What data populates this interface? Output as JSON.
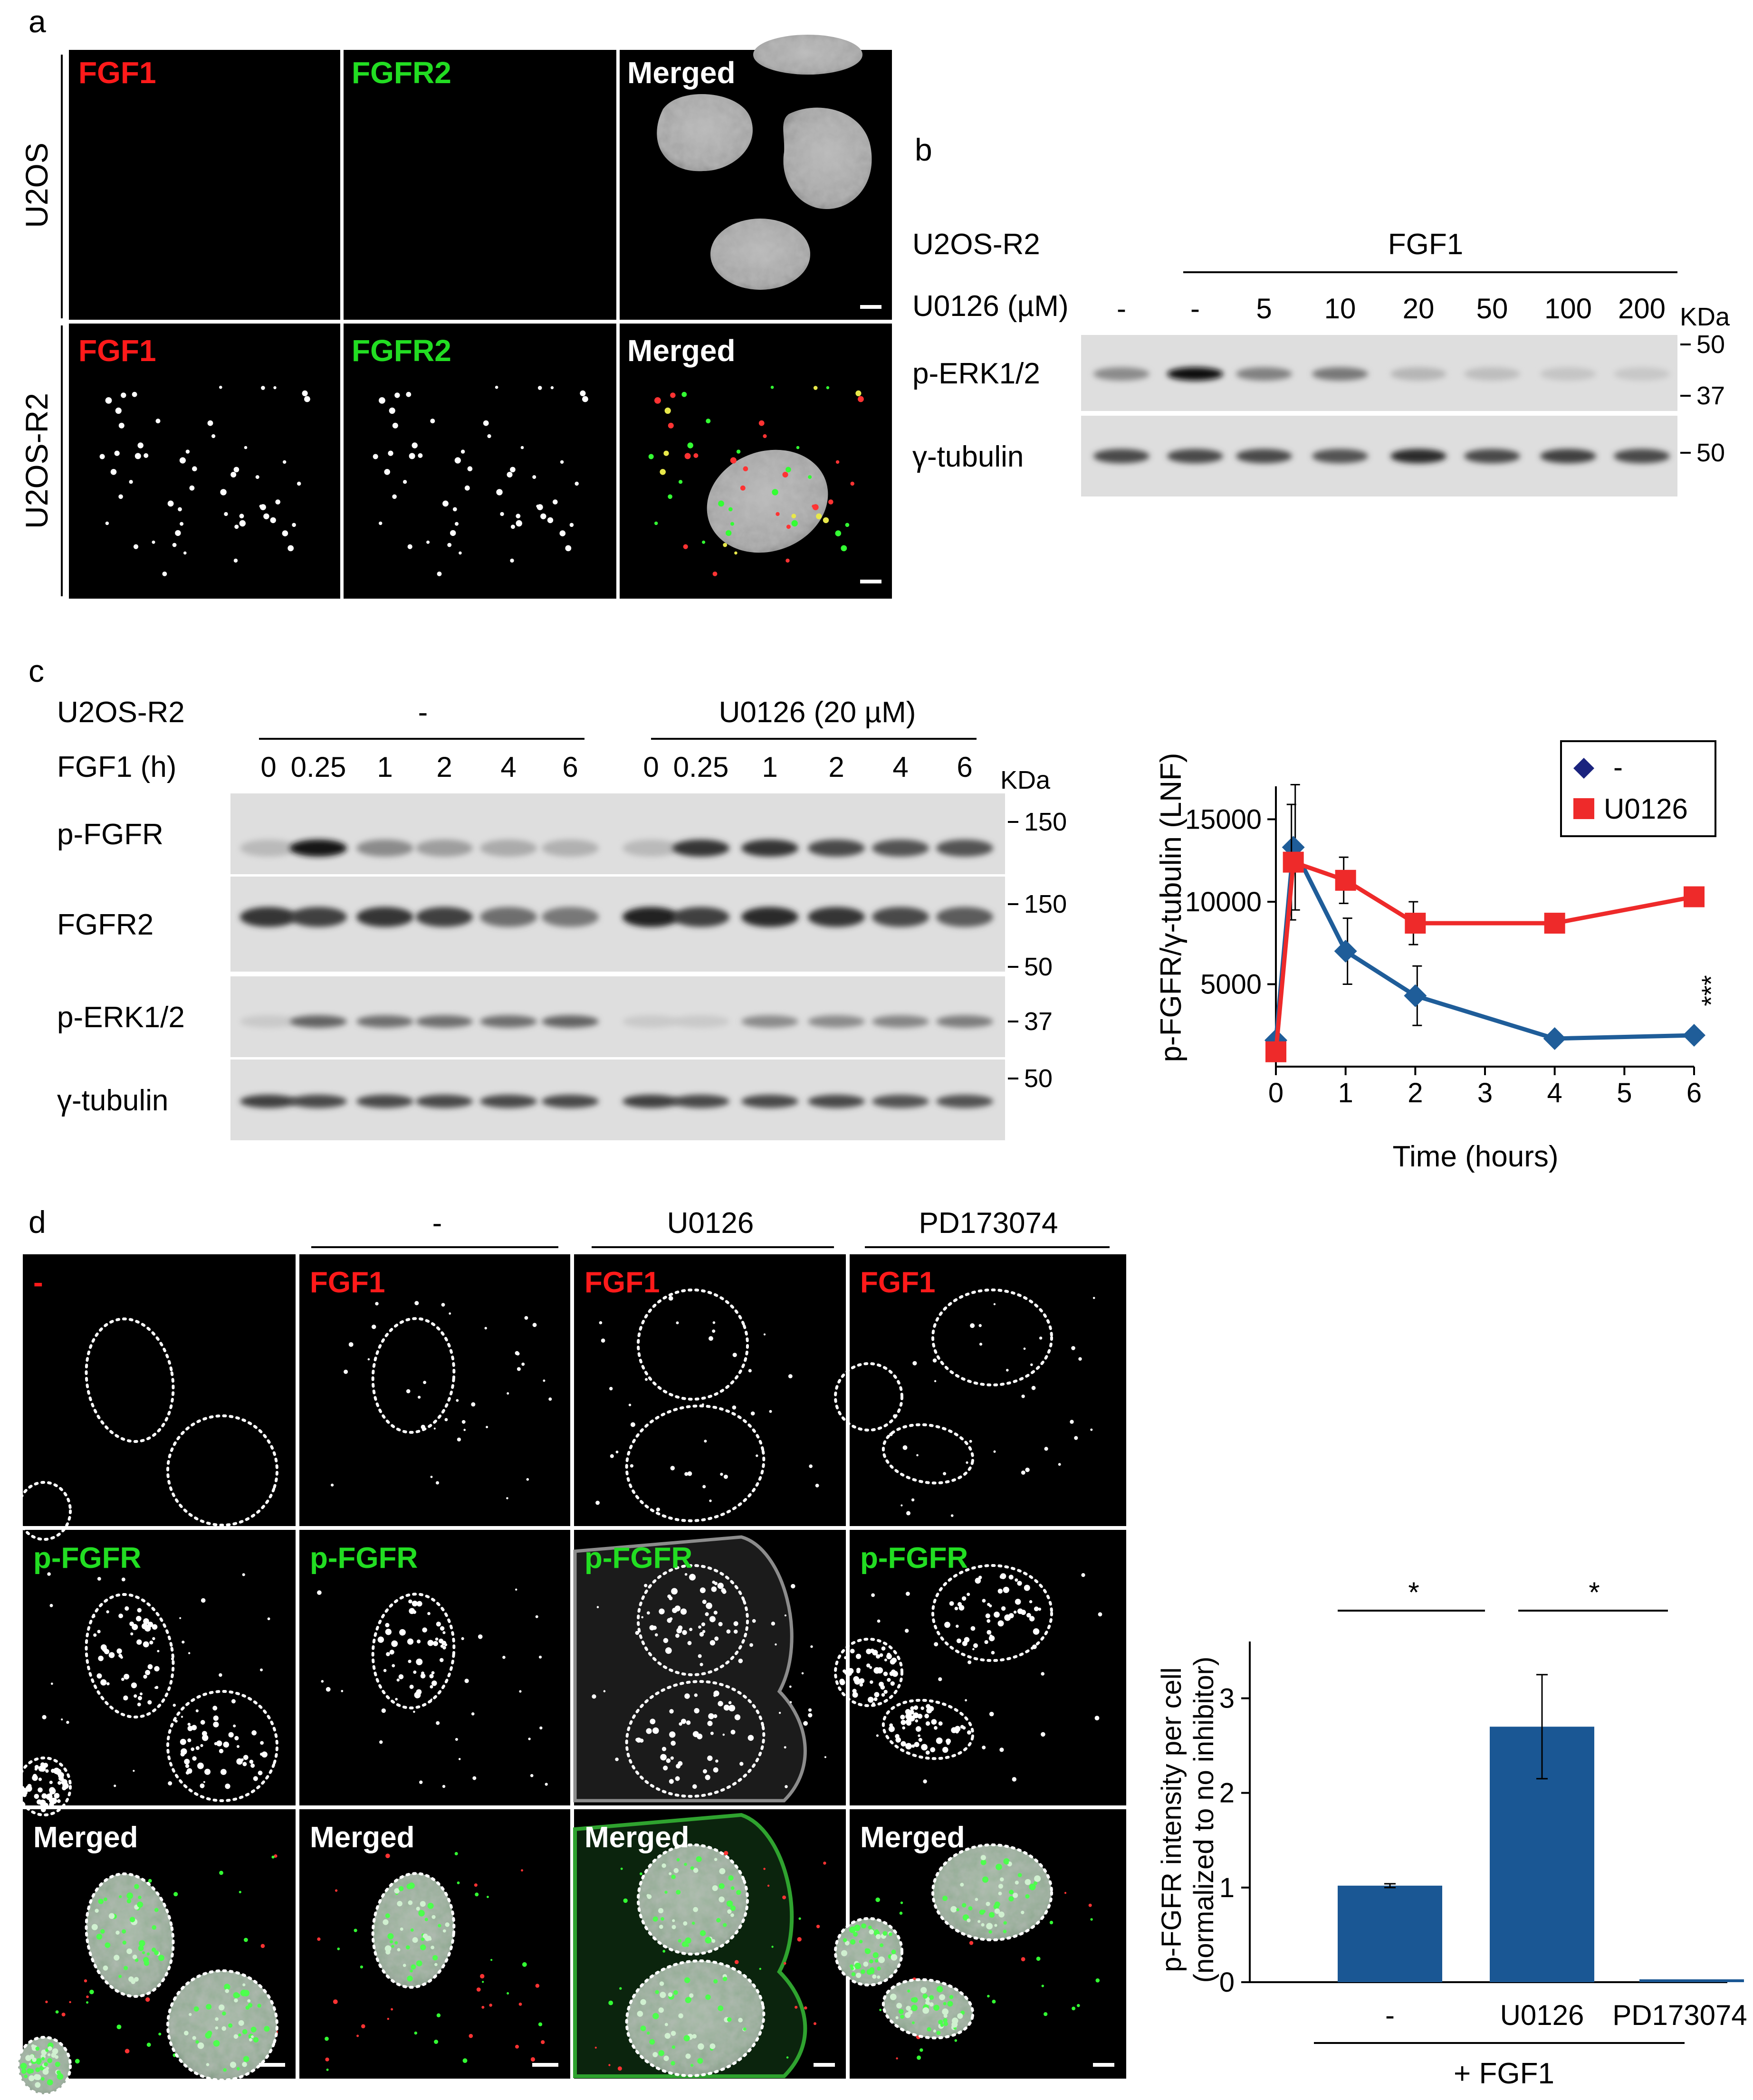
{
  "panel_letters": [
    "a",
    "b",
    "c",
    "d"
  ],
  "panel_a": {
    "rows": [
      {
        "label": "U2OS",
        "channels": [
          "FGF1",
          "FGFR2",
          "Merged"
        ]
      },
      {
        "label": "U2OS-R2",
        "channels": [
          "FGF1",
          "FGFR2",
          "Merged"
        ]
      }
    ]
  },
  "panel_b": {
    "cell_line": "U2OS-R2",
    "treatment_group": "FGF1",
    "inhibitor_label": "U0126 (µM)",
    "lanes": [
      "-",
      "-",
      "5",
      "10",
      "20",
      "50",
      "100",
      "200"
    ],
    "kda_label": "KDa",
    "blots": [
      {
        "label": "p-ERK1/2",
        "markers": [
          "50",
          "37"
        ],
        "intensity": [
          0.35,
          1.0,
          0.4,
          0.45,
          0.12,
          0.08,
          0.04,
          0.03
        ]
      },
      {
        "label": "γ-tubulin",
        "markers": [
          "50"
        ],
        "intensity": [
          0.7,
          0.7,
          0.7,
          0.65,
          0.85,
          0.7,
          0.75,
          0.7
        ]
      }
    ]
  },
  "panel_c": {
    "cell_line": "U2OS-R2",
    "groups": [
      "-",
      "U0126 (20 µM)"
    ],
    "time_label": "FGF1 (h)",
    "lanes": [
      "0",
      "0.25",
      "1",
      "2",
      "4",
      "6",
      "0",
      "0.25",
      "1",
      "2",
      "4",
      "6"
    ],
    "kda_label": "KDa",
    "blots": [
      {
        "label": "p-FGFR",
        "markers": [
          "150"
        ],
        "intensity": [
          0.1,
          0.95,
          0.35,
          0.25,
          0.18,
          0.15,
          0.1,
          0.8,
          0.8,
          0.7,
          0.65,
          0.65
        ]
      },
      {
        "label": "FGFR2",
        "markers": [
          "150"
        ],
        "intensity": [
          0.8,
          0.75,
          0.8,
          0.75,
          0.5,
          0.45,
          0.9,
          0.75,
          0.85,
          0.8,
          0.7,
          0.6
        ]
      },
      {
        "label": "p-ERK1/2",
        "markers": [
          "50",
          "37"
        ],
        "intensity": [
          0.02,
          0.55,
          0.5,
          0.5,
          0.5,
          0.55,
          0.02,
          0.02,
          0.35,
          0.35,
          0.38,
          0.42
        ]
      },
      {
        "label": "γ-tubulin",
        "markers": [
          "50"
        ],
        "intensity": [
          0.75,
          0.7,
          0.7,
          0.7,
          0.7,
          0.7,
          0.75,
          0.7,
          0.7,
          0.7,
          0.65,
          0.65
        ]
      }
    ]
  },
  "panel_d_images": {
    "column_headers": [
      "-",
      "U0126",
      "PD173074"
    ],
    "rows": [
      {
        "labels": [
          "-",
          "FGF1",
          "FGF1",
          "FGF1"
        ]
      },
      {
        "labels": [
          "p-FGFR",
          "p-FGFR",
          "p-FGFR",
          "p-FGFR"
        ]
      },
      {
        "labels": [
          "Merged",
          "Merged",
          "Merged",
          "Merged"
        ]
      }
    ]
  },
  "chart_data": [
    {
      "type": "line",
      "xlabel": "Time (hours)",
      "ylabel": "p-FGFR/γ-tubulin (LNF)",
      "xlim": [
        0,
        6
      ],
      "ylim": [
        0,
        17000
      ],
      "xticks": [
        0,
        1,
        2,
        3,
        4,
        5,
        6
      ],
      "yticks": [
        5000,
        10000,
        15000
      ],
      "legend_position": "top-right",
      "significance": "***",
      "series": [
        {
          "name": "-",
          "color": "#1f5d99",
          "marker_color": "#1a237e",
          "marker": "diamond",
          "x": [
            0,
            0.25,
            1,
            2,
            4,
            6
          ],
          "y": [
            1600,
            13300,
            7000,
            4300,
            1700,
            1900
          ],
          "err": [
            0,
            3800,
            2000,
            1800,
            0,
            0
          ]
        },
        {
          "name": "U0126",
          "color": "#ee2a2a",
          "marker_color": "#ee2a2a",
          "marker": "square",
          "x": [
            0,
            0.25,
            1,
            2,
            4,
            6
          ],
          "y": [
            900,
            12400,
            11300,
            8700,
            8700,
            10300
          ],
          "err": [
            0,
            3500,
            1400,
            1300,
            0,
            0
          ]
        }
      ]
    },
    {
      "type": "bar",
      "ylabel": "p-FGFR intensity per cell\n(normalized to no inhibitor)",
      "categories": [
        "-",
        "U0126",
        "PD173074"
      ],
      "values": [
        1.02,
        2.7,
        0.03
      ],
      "errors": [
        0.02,
        0.55,
        0.0
      ],
      "ylim": [
        0,
        3.6
      ],
      "yticks": [
        0,
        1,
        2,
        3
      ],
      "group_label": "+ FGF1",
      "bar_color": "#1a5794",
      "significance": [
        {
          "from": 0,
          "to": 1,
          "label": "*"
        },
        {
          "from": 1,
          "to": 2,
          "label": "*"
        }
      ]
    }
  ]
}
